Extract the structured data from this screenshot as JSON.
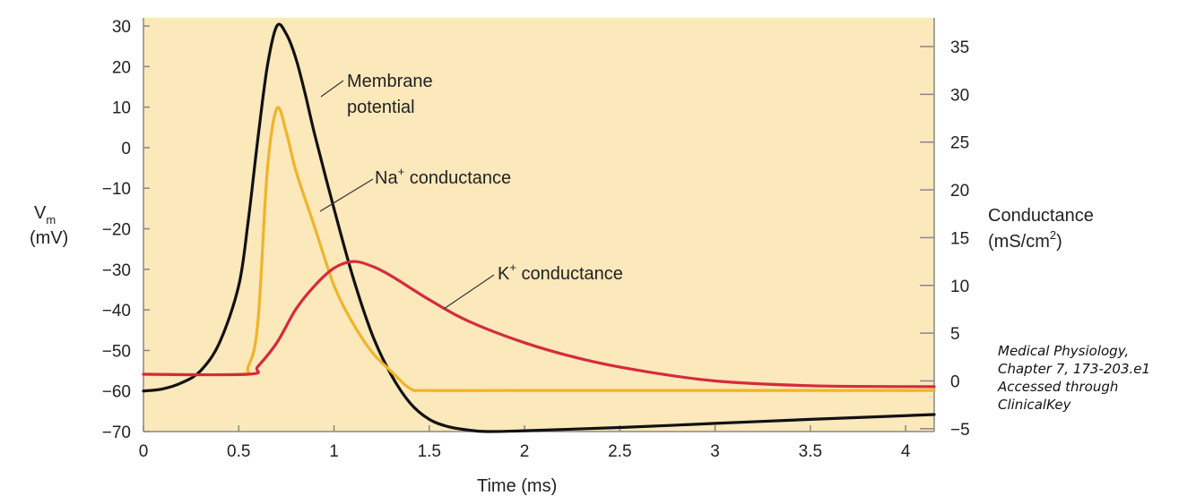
{
  "chart_data": {
    "type": "line",
    "title": "",
    "xlabel": "Time (ms)",
    "xlim": [
      0,
      4.15
    ],
    "x_ticks": [
      "0",
      "0.5",
      "1",
      "1.5",
      "2",
      "2.5",
      "3",
      "3.5",
      "4"
    ],
    "left_axis": {
      "label_main": "V",
      "label_sub": "m",
      "label_unit": "(mV)",
      "ylim": [
        -70,
        32
      ],
      "ticks": [
        "30",
        "20",
        "10",
        "0",
        "−10",
        "−20",
        "−30",
        "−40",
        "−50",
        "−60",
        "−70"
      ]
    },
    "right_axis": {
      "label_main": "Conductance",
      "label_unit_pre": "(mS/cm",
      "label_unit_sup": "2",
      "label_unit_post": ")",
      "ylim": [
        -5.3,
        38
      ],
      "ticks": [
        "35",
        "30",
        "25",
        "20",
        "15",
        "10",
        "5",
        "0",
        "−5"
      ]
    },
    "series": [
      {
        "name": "Membrane potential",
        "axis": "left",
        "color": "#111111",
        "points": [
          [
            0,
            -60
          ],
          [
            0.1,
            -59.5
          ],
          [
            0.2,
            -58
          ],
          [
            0.3,
            -55
          ],
          [
            0.4,
            -48
          ],
          [
            0.5,
            -34
          ],
          [
            0.55,
            -18
          ],
          [
            0.6,
            2
          ],
          [
            0.65,
            20
          ],
          [
            0.7,
            30
          ],
          [
            0.75,
            28
          ],
          [
            0.8,
            22
          ],
          [
            0.85,
            13
          ],
          [
            0.9,
            3
          ],
          [
            1.0,
            -15
          ],
          [
            1.1,
            -32
          ],
          [
            1.2,
            -46
          ],
          [
            1.3,
            -56
          ],
          [
            1.4,
            -63
          ],
          [
            1.5,
            -67
          ],
          [
            1.6,
            -68.8
          ],
          [
            1.7,
            -69.6
          ],
          [
            1.8,
            -70
          ],
          [
            2.0,
            -69.8
          ],
          [
            2.5,
            -69
          ],
          [
            3.0,
            -68
          ],
          [
            3.5,
            -67
          ],
          [
            4.15,
            -65.8
          ]
        ]
      },
      {
        "name": "Na conductance",
        "axis": "right",
        "color": "#f0b429",
        "points": [
          [
            0,
            0.7
          ],
          [
            0.5,
            0.7
          ],
          [
            0.55,
            1.5
          ],
          [
            0.6,
            6
          ],
          [
            0.65,
            22
          ],
          [
            0.7,
            28.5
          ],
          [
            0.75,
            26
          ],
          [
            0.8,
            22
          ],
          [
            0.9,
            16
          ],
          [
            1.0,
            10
          ],
          [
            1.1,
            6
          ],
          [
            1.2,
            3
          ],
          [
            1.3,
            1
          ],
          [
            1.4,
            -0.8
          ],
          [
            1.5,
            -1
          ],
          [
            2.0,
            -1
          ],
          [
            3.0,
            -1
          ],
          [
            4.15,
            -1
          ]
        ]
      },
      {
        "name": "K conductance",
        "axis": "right",
        "color": "#d62a3c",
        "points": [
          [
            0,
            0.7
          ],
          [
            0.55,
            0.7
          ],
          [
            0.6,
            1.5
          ],
          [
            0.7,
            4
          ],
          [
            0.8,
            7.5
          ],
          [
            0.9,
            10
          ],
          [
            1.0,
            11.8
          ],
          [
            1.1,
            12.5
          ],
          [
            1.2,
            12
          ],
          [
            1.3,
            11
          ],
          [
            1.5,
            8.5
          ],
          [
            1.7,
            6.3
          ],
          [
            2.0,
            4
          ],
          [
            2.3,
            2.3
          ],
          [
            2.6,
            1.1
          ],
          [
            3.0,
            0
          ],
          [
            3.5,
            -0.5
          ],
          [
            4.15,
            -0.6
          ]
        ]
      }
    ],
    "annotations": [
      {
        "id": "membrane",
        "lines": [
          "Membrane",
          "potential"
        ]
      },
      {
        "id": "na",
        "main": "Na",
        "sup": "+",
        "rest": " conductance"
      },
      {
        "id": "k",
        "main": "K",
        "sup": "+",
        "rest": " conductance"
      }
    ],
    "colors": {
      "background": "#fbe8bb"
    }
  },
  "citation": {
    "line1": "Medical Physiology,",
    "line2": "Chapter 7, 173-203.e1",
    "line3": "Accessed through",
    "line4": "ClinicalKey"
  }
}
